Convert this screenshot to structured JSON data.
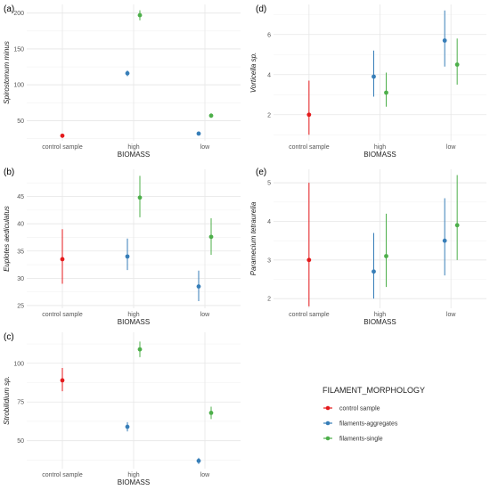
{
  "legend": {
    "title": "FILAMENT_MORPHOLOGY",
    "items": [
      {
        "label": "control sample",
        "color": "#e41a1c"
      },
      {
        "label": "filaments-aggregates",
        "color": "#377eb8"
      },
      {
        "label": "filaments-single",
        "color": "#4daf4a"
      }
    ]
  },
  "chart_data": [
    {
      "type": "scatter",
      "panel": "(a)",
      "ylabel": "Spirostomum minus",
      "xlabel": "BIOMASS",
      "categories": [
        "control sample",
        "high",
        "low"
      ],
      "ylim": [
        22,
        212
      ],
      "yticks": [
        50,
        100,
        150,
        200
      ],
      "points": [
        {
          "category": "control sample",
          "group": "control sample",
          "value": 29,
          "low": 26,
          "high": 32
        },
        {
          "category": "high",
          "group": "filaments-aggregates",
          "value": 116,
          "low": 112,
          "high": 120
        },
        {
          "category": "high",
          "group": "filaments-single",
          "value": 197,
          "low": 190,
          "high": 204
        },
        {
          "category": "low",
          "group": "filaments-aggregates",
          "value": 32,
          "low": 30,
          "high": 34
        },
        {
          "category": "low",
          "group": "filaments-single",
          "value": 57,
          "low": 54,
          "high": 60
        }
      ]
    },
    {
      "type": "scatter",
      "panel": "(d)",
      "ylabel": "Vorticella sp.",
      "xlabel": "BIOMASS",
      "categories": [
        "control sample",
        "high",
        "low"
      ],
      "ylim": [
        0.7,
        7.5
      ],
      "yticks": [
        2,
        4,
        6
      ],
      "points": [
        {
          "category": "control sample",
          "group": "control sample",
          "value": 2.0,
          "low": 1.0,
          "high": 3.7
        },
        {
          "category": "high",
          "group": "filaments-aggregates",
          "value": 3.9,
          "low": 2.9,
          "high": 5.2
        },
        {
          "category": "high",
          "group": "filaments-single",
          "value": 3.1,
          "low": 2.4,
          "high": 4.1
        },
        {
          "category": "low",
          "group": "filaments-aggregates",
          "value": 5.7,
          "low": 4.4,
          "high": 7.2
        },
        {
          "category": "low",
          "group": "filaments-single",
          "value": 4.5,
          "low": 3.5,
          "high": 5.8
        }
      ]
    },
    {
      "type": "scatter",
      "panel": "(b)",
      "ylabel": "Euplotes aediculatus",
      "xlabel": "BIOMASS",
      "categories": [
        "control sample",
        "high",
        "low"
      ],
      "ylim": [
        24.5,
        50
      ],
      "yticks": [
        25,
        30,
        35,
        40,
        45
      ],
      "points": [
        {
          "category": "control sample",
          "group": "control sample",
          "value": 33.5,
          "low": 29,
          "high": 39
        },
        {
          "category": "high",
          "group": "filaments-aggregates",
          "value": 34,
          "low": 31.5,
          "high": 37.3
        },
        {
          "category": "high",
          "group": "filaments-single",
          "value": 44.8,
          "low": 41.2,
          "high": 48.8
        },
        {
          "category": "low",
          "group": "filaments-aggregates",
          "value": 28.5,
          "low": 25.8,
          "high": 31.4
        },
        {
          "category": "low",
          "group": "filaments-single",
          "value": 37.6,
          "low": 34.3,
          "high": 41
        }
      ]
    },
    {
      "type": "scatter",
      "panel": "(e)",
      "ylabel": "Paramecium tetraurelia",
      "xlabel": "BIOMASS",
      "categories": [
        "control sample",
        "high",
        "low"
      ],
      "ylim": [
        1.75,
        5.35
      ],
      "yticks": [
        2,
        3,
        4,
        5
      ],
      "points": [
        {
          "category": "control sample",
          "group": "control sample",
          "value": 3.0,
          "low": 1.8,
          "high": 5.0
        },
        {
          "category": "high",
          "group": "filaments-aggregates",
          "value": 2.7,
          "low": 2.0,
          "high": 3.7
        },
        {
          "category": "high",
          "group": "filaments-single",
          "value": 3.1,
          "low": 2.3,
          "high": 4.2
        },
        {
          "category": "low",
          "group": "filaments-aggregates",
          "value": 3.5,
          "low": 2.6,
          "high": 4.6
        },
        {
          "category": "low",
          "group": "filaments-single",
          "value": 3.9,
          "low": 3.0,
          "high": 5.2
        }
      ]
    },
    {
      "type": "scatter",
      "panel": "(c)",
      "ylabel": "Strobilidium sp.",
      "xlabel": "BIOMASS",
      "categories": [
        "control sample",
        "high",
        "low"
      ],
      "ylim": [
        32,
        120
      ],
      "yticks": [
        50,
        75,
        100
      ],
      "points": [
        {
          "category": "control sample",
          "group": "control sample",
          "value": 89,
          "low": 82,
          "high": 97
        },
        {
          "category": "high",
          "group": "filaments-aggregates",
          "value": 59,
          "low": 56,
          "high": 62
        },
        {
          "category": "high",
          "group": "filaments-single",
          "value": 109,
          "low": 104,
          "high": 114
        },
        {
          "category": "low",
          "group": "filaments-aggregates",
          "value": 37,
          "low": 35,
          "high": 39
        },
        {
          "category": "low",
          "group": "filaments-single",
          "value": 68,
          "low": 64,
          "high": 72
        }
      ]
    }
  ]
}
